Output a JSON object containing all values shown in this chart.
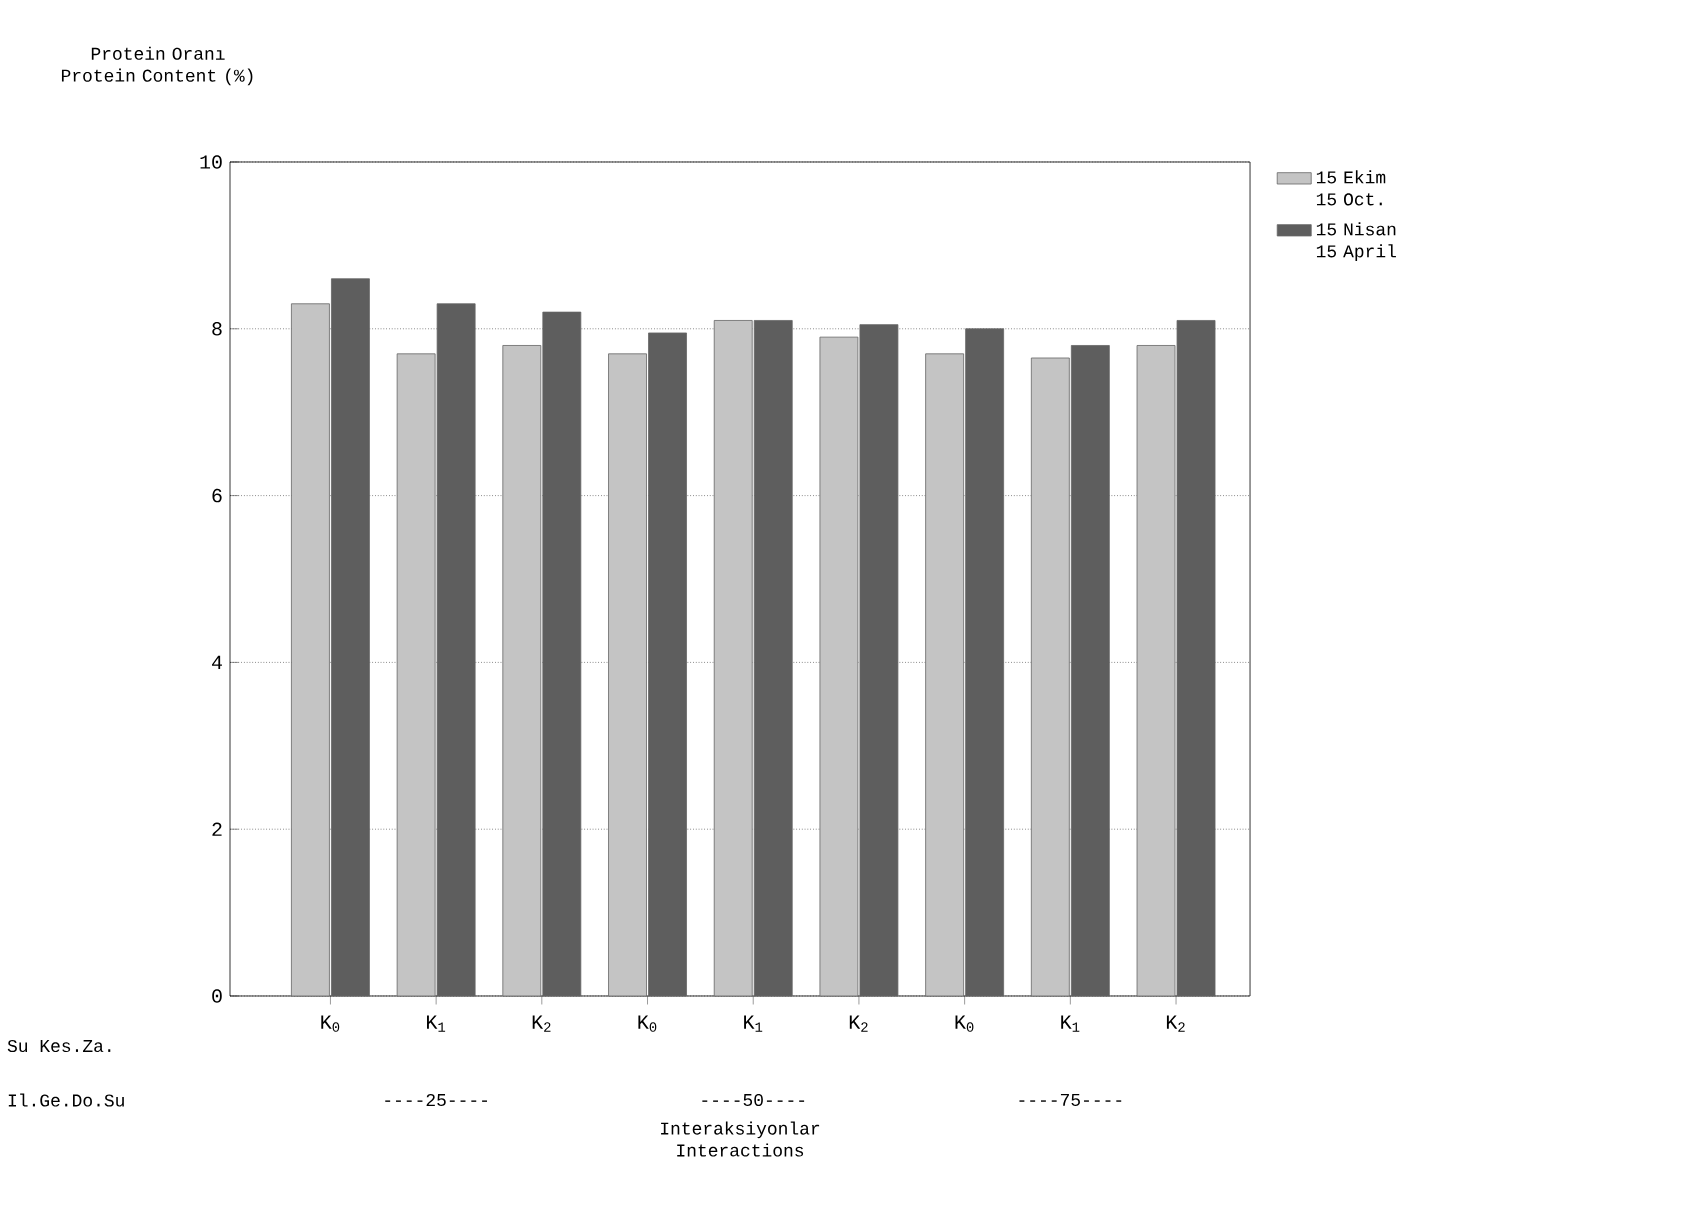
{
  "chart_data": {
    "type": "bar",
    "ylabel": "Protein Oranı Protein Content (%)",
    "xlabel": "Interaksiyonlar Interactions",
    "categories": [
      "K$_{0}$",
      "K$_{1}$",
      "K$_{2}$",
      "K$_{0}$",
      "K$_{1}$",
      "K$_{2}$",
      "K$_{0}$",
      "K$_{1}$",
      "K$_{2}$"
    ],
    "series": [
      {
        "name": "15 Ekim 15 Oct.",
        "color": "#c4c4c4",
        "values": [
          8.3,
          7.7,
          7.8,
          7.7,
          8.1,
          7.9,
          7.7,
          7.65,
          7.8
        ]
      },
      {
        "name": "15 Nisan 15 April",
        "color": "#5e5e5e",
        "values": [
          8.6,
          8.3,
          8.2,
          7.95,
          8.1,
          8.05,
          8.0,
          7.8,
          8.1
        ]
      }
    ],
    "annotations": [
      "Su Kes.Za.",
      "Il.Ge.Do.Su",
      "----25----",
      "----50----",
      "----75----"
    ],
    "ylim": [
      0,
      10
    ],
    "yticks": [
      0,
      2,
      4,
      6,
      8,
      10
    ],
    "grid": "y",
    "legend": "top right"
  }
}
